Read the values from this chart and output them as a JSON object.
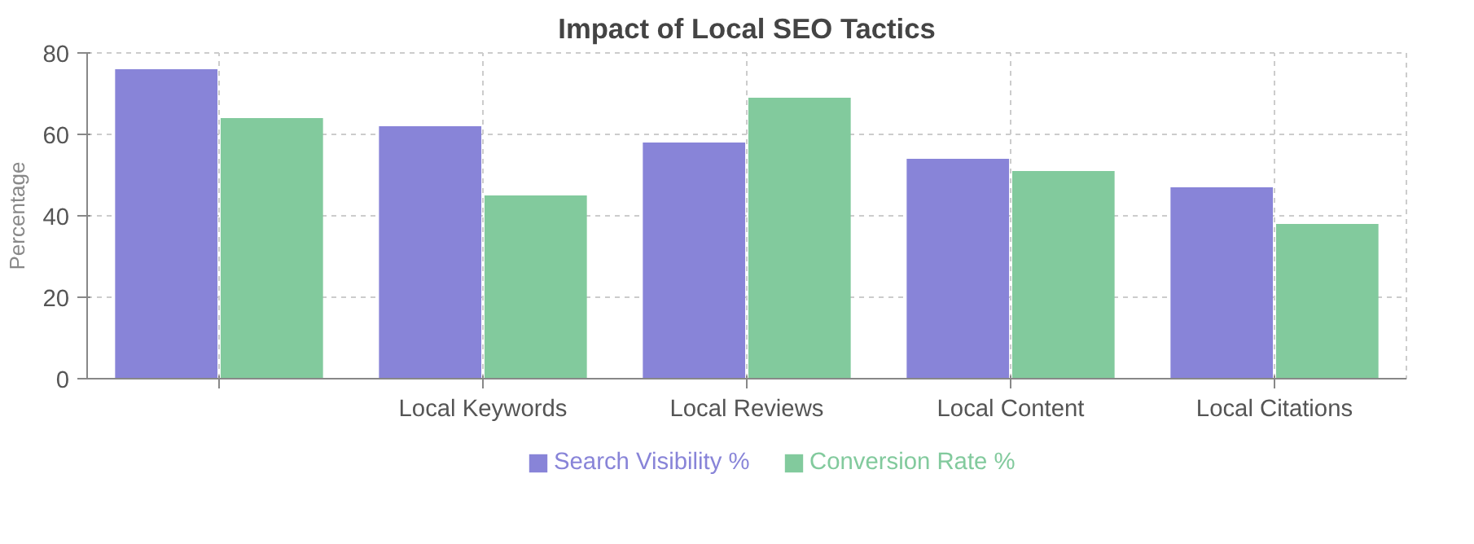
{
  "chart_data": {
    "type": "bar",
    "title": "Impact of Local SEO Tactics",
    "ylabel": "Percentage",
    "categories": [
      null,
      "Local Keywords",
      "Local Reviews",
      "Local Content",
      "Local Citations"
    ],
    "series": [
      {
        "name": "Search Visibility %",
        "color": "#8884d8",
        "values": [
          76,
          62,
          58,
          54,
          47
        ]
      },
      {
        "name": "Conversion Rate %",
        "color": "#82ca9d",
        "values": [
          64,
          45,
          69,
          51,
          38
        ]
      }
    ],
    "ylim": [
      0,
      80
    ],
    "yticks": [
      0,
      20,
      40,
      60,
      80
    ],
    "grid": true,
    "legend": "bottom"
  }
}
